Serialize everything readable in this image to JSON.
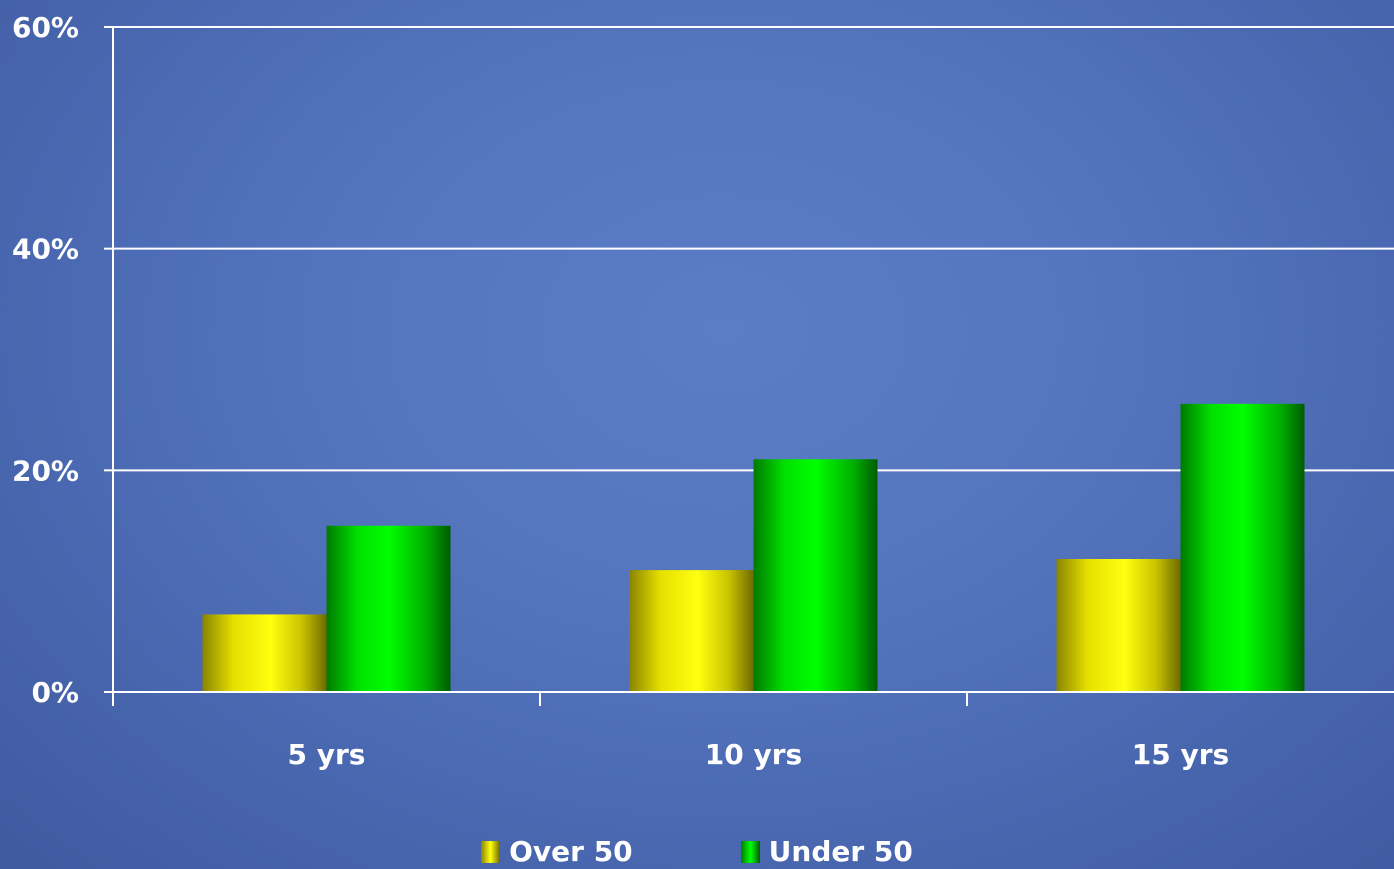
{
  "chart_data": {
    "type": "bar",
    "categories": [
      "5 yrs",
      "10 yrs",
      "15 yrs"
    ],
    "series": [
      {
        "name": "Over 50",
        "values": [
          7,
          11,
          12
        ],
        "color": "#ffff00"
      },
      {
        "name": "Under 50",
        "values": [
          15,
          21,
          26
        ],
        "color": "#00ff00"
      }
    ],
    "title": "",
    "xlabel": "",
    "ylabel": "",
    "ylim": [
      0,
      60
    ],
    "yticks": [
      0,
      20,
      40,
      60
    ],
    "ytick_labels": [
      "0%",
      "20%",
      "40%",
      "60%"
    ],
    "grid": true,
    "legend_position": "bottom",
    "background_color": "#5576bf",
    "gridline_color": "#ffffff"
  },
  "legend": {
    "over50_label": "Over 50",
    "under50_label": "Under 50"
  }
}
